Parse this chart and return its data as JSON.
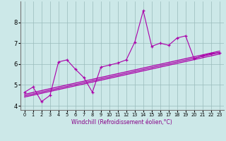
{
  "xlabel": "Windchill (Refroidissement éolien,°C)",
  "background_color": "#cce8e8",
  "line_color": "#aa00aa",
  "grid_color": "#99bbbb",
  "xlim": [
    -0.5,
    23.5
  ],
  "ylim": [
    3.8,
    9.0
  ],
  "yticks": [
    4,
    5,
    6,
    7,
    8
  ],
  "xticks": [
    0,
    1,
    2,
    3,
    4,
    5,
    6,
    7,
    8,
    9,
    10,
    11,
    12,
    13,
    14,
    15,
    16,
    17,
    18,
    19,
    20,
    21,
    22,
    23
  ],
  "data_x": [
    0,
    1,
    2,
    3,
    4,
    5,
    6,
    7,
    8,
    9,
    10,
    11,
    12,
    13,
    14,
    15,
    16,
    17,
    18,
    19,
    20,
    21,
    22,
    23
  ],
  "data_y": [
    4.65,
    4.9,
    4.2,
    4.5,
    6.1,
    6.2,
    5.75,
    5.35,
    4.65,
    5.85,
    5.95,
    6.05,
    6.2,
    7.05,
    8.55,
    6.85,
    7.0,
    6.9,
    7.25,
    7.35,
    6.25,
    6.4,
    6.5,
    6.55
  ],
  "trend_lines": [
    {
      "x0": 0,
      "y0": 4.55,
      "x1": 23,
      "y1": 6.62
    },
    {
      "x0": 0,
      "y0": 4.48,
      "x1": 23,
      "y1": 6.55
    },
    {
      "x0": 0,
      "y0": 4.42,
      "x1": 23,
      "y1": 6.48
    }
  ],
  "xlabel_fontsize": 5.5,
  "tick_fontsize_x": 4.8,
  "tick_fontsize_y": 6.0,
  "xlabel_color": "#880088"
}
